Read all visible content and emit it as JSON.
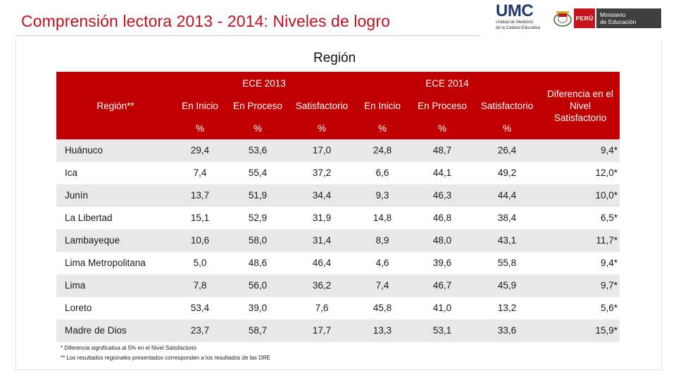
{
  "header": {
    "title": "Comprensión lectora 2013 - 2014: Niveles de logro",
    "umc_logo": "UMC",
    "umc_subtitle": [
      "Unidad de Medición",
      "de la Calidad Educativa"
    ],
    "peru_label": "PERÚ",
    "ministry_label": [
      "Ministerio",
      "de Educación"
    ]
  },
  "region_title": "Región",
  "table": {
    "region_header": "Región**",
    "ece2013": "ECE 2013",
    "ece2014": "ECE 2014",
    "diff_header": "Diferencia en el Nivel Satisfactorio",
    "levels": [
      "En Inicio",
      "En Proceso",
      "Satisfactorio",
      "En Inicio",
      "En Proceso",
      "Satisfactorio"
    ],
    "unit": "%",
    "rows": [
      {
        "region": "Huánuco",
        "values": [
          "29,4",
          "53,6",
          "17,0",
          "24,8",
          "48,7",
          "26,4"
        ],
        "diff": "9,4*"
      },
      {
        "region": "Ica",
        "values": [
          "7,4",
          "55,4",
          "37,2",
          "6,6",
          "44,1",
          "49,2"
        ],
        "diff": "12,0*"
      },
      {
        "region": "Junín",
        "values": [
          "13,7",
          "51,9",
          "34,4",
          "9,3",
          "46,3",
          "44,4"
        ],
        "diff": "10,0*"
      },
      {
        "region": "La Libertad",
        "values": [
          "15,1",
          "52,9",
          "31,9",
          "14,8",
          "46,8",
          "38,4"
        ],
        "diff": "6,5*"
      },
      {
        "region": "Lambayeque",
        "values": [
          "10,6",
          "58,0",
          "31,4",
          "8,9",
          "48,0",
          "43,1"
        ],
        "diff": "11,7*"
      },
      {
        "region": "Lima Metropolitana",
        "values": [
          "5,0",
          "48,6",
          "46,4",
          "4,6",
          "39,6",
          "55,8"
        ],
        "diff": "9,4*"
      },
      {
        "region": "Lima",
        "values": [
          "7,8",
          "56,0",
          "36,2",
          "7,4",
          "46,7",
          "45,9"
        ],
        "diff": "9,7*"
      },
      {
        "region": "Loreto",
        "values": [
          "53,4",
          "39,0",
          "7,6",
          "45,8",
          "41,0",
          "13,2"
        ],
        "diff": "5,6*"
      },
      {
        "region": "Madre de Dios",
        "values": [
          "23,7",
          "58,7",
          "17,7",
          "13,3",
          "53,1",
          "33,6"
        ],
        "diff": "15,9*"
      }
    ]
  },
  "footnotes": [
    "* Diferencia significativa al 5% en el Nivel Satisfactorio",
    "** Los resultados regionales presentados corresponden a los resultados de las DRE"
  ]
}
